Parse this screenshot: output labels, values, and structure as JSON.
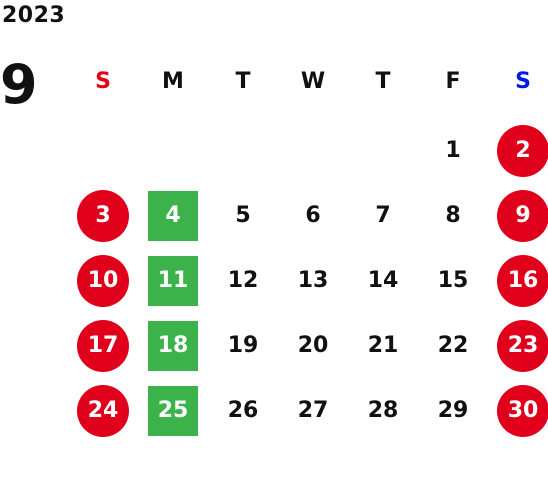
{
  "calendar": {
    "year": "2023",
    "month": "9",
    "colors": {
      "sunday_header": "#e60012",
      "saturday_header": "#0019e6",
      "holiday_circle": "#e0001b",
      "monday_square": "#3bb34a",
      "text": "#111111"
    },
    "weekdays": [
      "S",
      "M",
      "T",
      "W",
      "T",
      "F",
      "S"
    ],
    "weeks": [
      [
        "",
        "",
        "",
        "",
        "",
        "1",
        "2"
      ],
      [
        "3",
        "4",
        "5",
        "6",
        "7",
        "8",
        "9"
      ],
      [
        "10",
        "11",
        "12",
        "13",
        "14",
        "15",
        "16"
      ],
      [
        "17",
        "18",
        "19",
        "20",
        "21",
        "22",
        "23"
      ],
      [
        "24",
        "25",
        "26",
        "27",
        "28",
        "29",
        "30"
      ]
    ]
  }
}
